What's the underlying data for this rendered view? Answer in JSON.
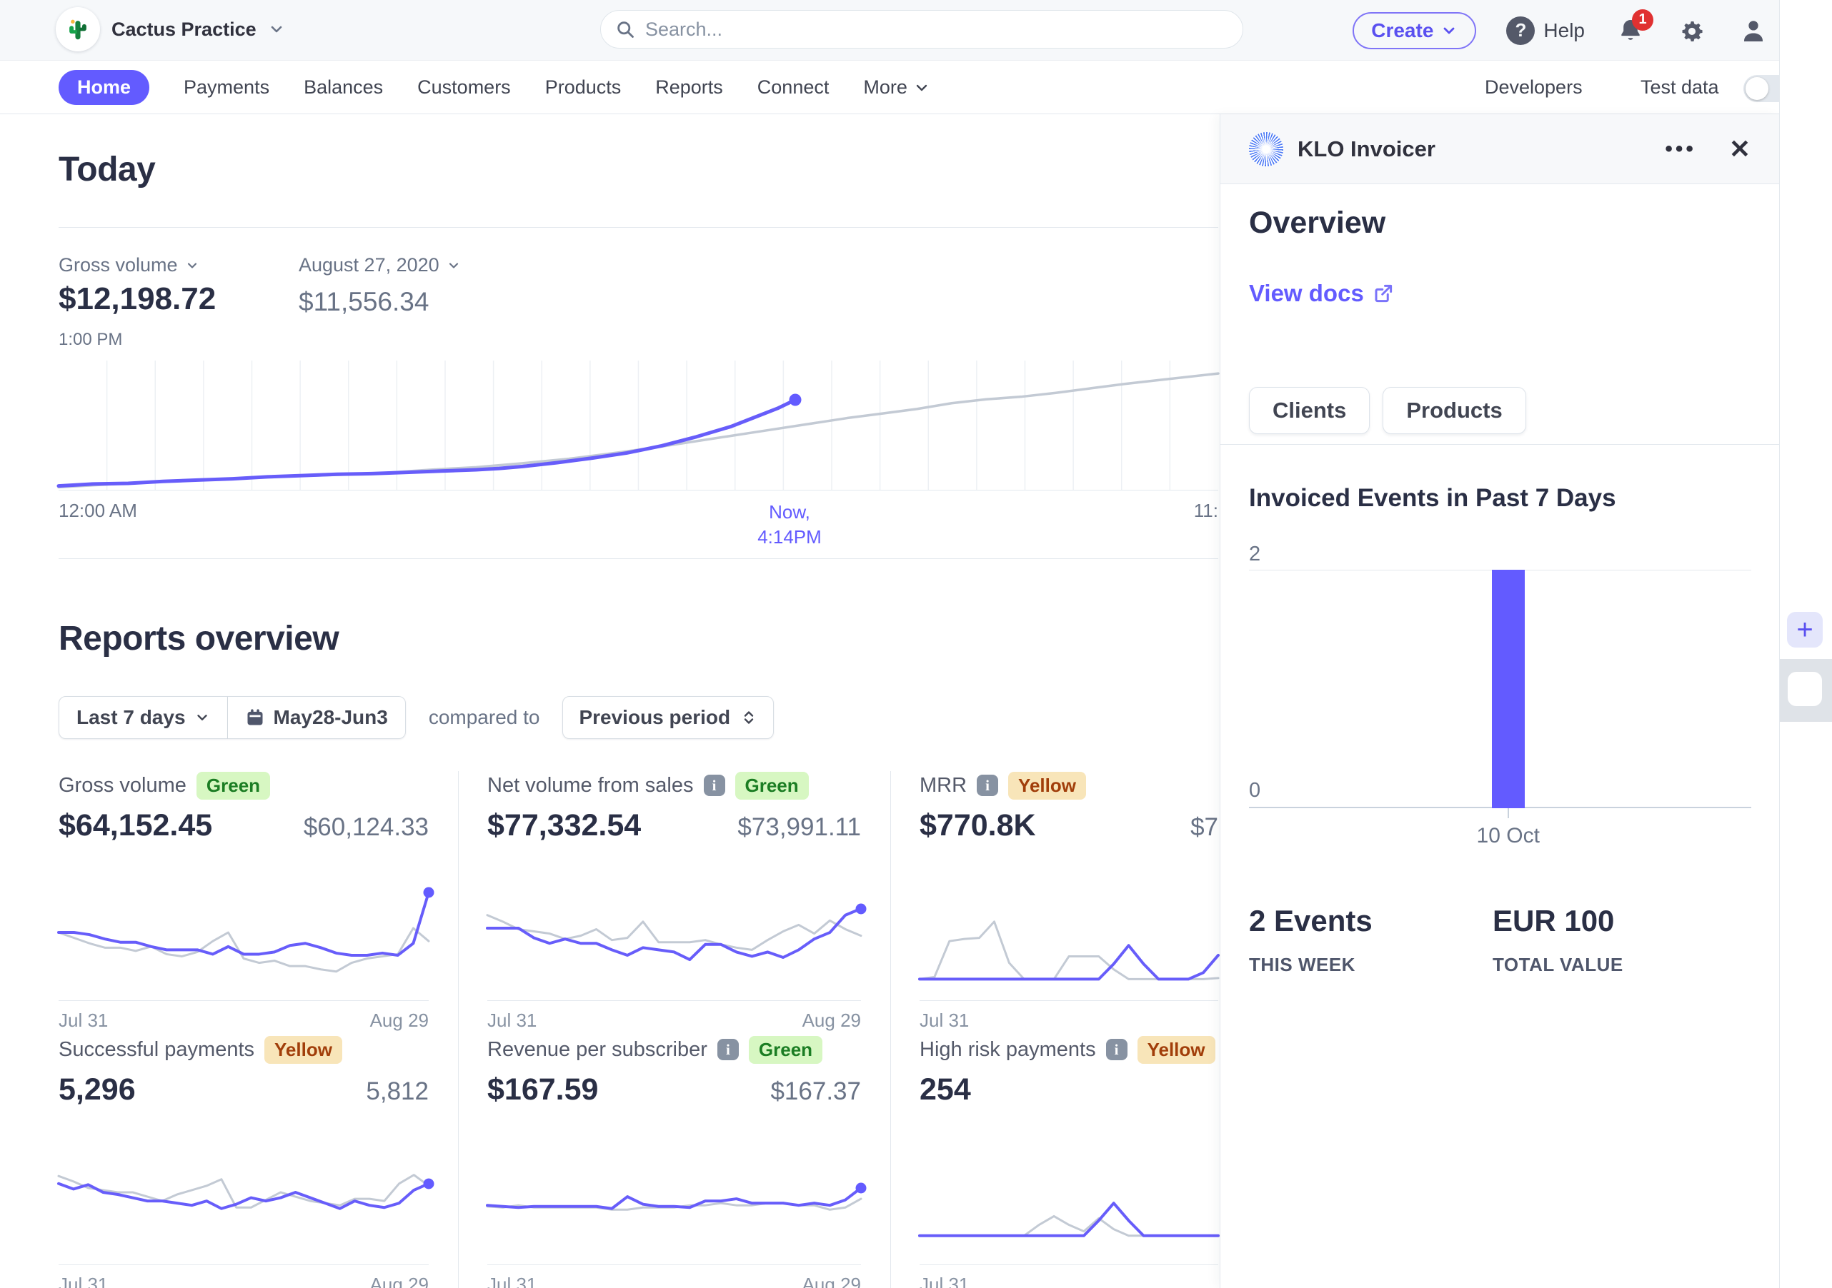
{
  "topbar": {
    "account": "Cactus Practice",
    "search_placeholder": "Search...",
    "create_label": "Create",
    "help_label": "Help",
    "help_glyph": "?",
    "notification_count": "1"
  },
  "nav": {
    "items": [
      "Home",
      "Payments",
      "Balances",
      "Customers",
      "Products",
      "Reports",
      "Connect",
      "More"
    ],
    "active": "Home",
    "developers": "Developers",
    "test_data": "Test data"
  },
  "icons": {
    "ellipsis": "•••",
    "close": "✕",
    "plus": "+"
  },
  "today": {
    "title": "Today",
    "metric_label": "Gross volume",
    "metric_value": "$12,198.72",
    "metric_time": "1:00 PM",
    "compare_date": "August 27, 2020",
    "compare_value": "$11,556.34",
    "x_left": "12:00 AM",
    "x_now_line1": "Now,",
    "x_now_line2": "4:14PM",
    "x_right": "11:",
    "chart": {
      "type": "line",
      "gridlines": 23,
      "dot": true,
      "purple": [
        [
          0,
          97
        ],
        [
          3,
          95.5
        ],
        [
          6,
          95
        ],
        [
          9,
          93.5
        ],
        [
          12,
          92.5
        ],
        [
          15,
          91.5
        ],
        [
          18,
          90
        ],
        [
          21,
          89
        ],
        [
          24,
          88
        ],
        [
          27,
          87.5
        ],
        [
          30,
          86.5
        ],
        [
          33,
          85.5
        ],
        [
          36,
          84.5
        ],
        [
          38,
          83.5
        ],
        [
          40,
          82
        ],
        [
          43,
          79
        ],
        [
          46,
          75.5
        ],
        [
          49,
          71.5
        ],
        [
          52,
          66
        ],
        [
          55,
          59
        ],
        [
          58,
          51
        ],
        [
          60,
          44
        ],
        [
          62,
          37
        ],
        [
          63.5,
          30.5
        ]
      ],
      "gray": [
        [
          0,
          98
        ],
        [
          4,
          96
        ],
        [
          8,
          94
        ],
        [
          12,
          92.5
        ],
        [
          16,
          91
        ],
        [
          20,
          89.5
        ],
        [
          24,
          88.5
        ],
        [
          28,
          87
        ],
        [
          32,
          84.5
        ],
        [
          36,
          82.5
        ],
        [
          40,
          79.5
        ],
        [
          44,
          76
        ],
        [
          48,
          71.5
        ],
        [
          52,
          66.5
        ],
        [
          56,
          61
        ],
        [
          60,
          55.5
        ],
        [
          64,
          50
        ],
        [
          68,
          44.5
        ],
        [
          71,
          41
        ],
        [
          74,
          37.5
        ],
        [
          77,
          33
        ],
        [
          80,
          30
        ],
        [
          83,
          28
        ],
        [
          86,
          25
        ],
        [
          89,
          21.5
        ],
        [
          92,
          18
        ],
        [
          95,
          15
        ],
        [
          100,
          10
        ]
      ]
    }
  },
  "reports": {
    "title": "Reports overview",
    "range_label": "Last 7 days",
    "date_range": "May28-Jun3",
    "compared_to": "compared to",
    "period_label": "Previous period",
    "cards": [
      {
        "title": "Gross volume",
        "info": false,
        "badge": "Green",
        "badge_type": "green",
        "value": "$64,152.45",
        "compare": "$60,124.33",
        "x0": "Jul 31",
        "x1": "Aug 29",
        "spark": {
          "dot": true,
          "purple": [
            52,
            52,
            54,
            58,
            61,
            61,
            65,
            68,
            68,
            68,
            72,
            65,
            72,
            72,
            70,
            64,
            62,
            66,
            71,
            73,
            73,
            71,
            73,
            62,
            15
          ],
          "gray": [
            52,
            57,
            62,
            66,
            66,
            69,
            65,
            72,
            74,
            70,
            60,
            52,
            76,
            80,
            78,
            83,
            83,
            86,
            88,
            80,
            76,
            74,
            72,
            48,
            60
          ]
        }
      },
      {
        "title": "Net volume from sales",
        "info": true,
        "badge": "Green",
        "badge_type": "green",
        "value": "$77,332.54",
        "compare": "$73,991.11",
        "x0": "Jul 31",
        "x1": "Aug 29",
        "spark": {
          "dot": true,
          "purple": [
            48,
            48,
            48,
            57,
            62,
            58,
            62,
            62,
            68,
            73,
            66,
            68,
            70,
            77,
            63,
            63,
            70,
            74,
            70,
            75,
            68,
            58,
            52,
            36,
            30
          ],
          "gray": [
            36,
            42,
            49,
            51,
            53,
            58,
            55,
            49,
            59,
            57,
            42,
            61,
            61,
            61,
            59,
            63,
            66,
            68,
            59,
            51,
            45,
            53,
            41,
            49,
            55
          ]
        }
      },
      {
        "title": "MRR",
        "info": true,
        "badge": "Yellow",
        "badge_type": "yellow",
        "value": "$770.8K",
        "compare": "$7",
        "x0": "Jul 31",
        "x1": "",
        "spark": {
          "dot": false,
          "purple": [
            95,
            95,
            95,
            95,
            95,
            95,
            95,
            95,
            95,
            95,
            95,
            95,
            95,
            81,
            64,
            81,
            95,
            95,
            95,
            89,
            73
          ],
          "gray": [
            95,
            93,
            60,
            58,
            57,
            42,
            80,
            95,
            95,
            95,
            74,
            74,
            74,
            86,
            95,
            95,
            95,
            95,
            95,
            95,
            94
          ]
        }
      },
      {
        "title": "Successful payments",
        "info": false,
        "badge": "Yellow",
        "badge_type": "yellow",
        "value": "5,296",
        "compare": "5,812",
        "x0": "Jul 31",
        "x1": "Aug 29",
        "spark": {
          "dot": true,
          "purple": [
            40,
            45,
            41,
            48,
            50,
            53,
            56,
            56,
            58,
            60,
            56,
            63,
            59,
            53,
            56,
            53,
            48,
            53,
            58,
            63,
            56,
            60,
            62,
            58,
            46,
            40
          ],
          "gray": [
            33,
            38,
            44,
            46,
            48,
            48,
            52,
            56,
            50,
            46,
            42,
            36,
            62,
            62,
            55,
            48,
            52,
            56,
            58,
            60,
            54,
            54,
            56,
            40,
            32,
            42
          ]
        }
      },
      {
        "title": "Revenue per subscriber",
        "info": true,
        "badge": "Green",
        "badge_type": "green",
        "value": "$167.59",
        "compare": "$167.37",
        "x0": "Jul 31",
        "x1": "Aug 29",
        "spark": {
          "dot": true,
          "purple": [
            60,
            61,
            62,
            61,
            61,
            61,
            61,
            61,
            63,
            52,
            59,
            61,
            61,
            62,
            56,
            56,
            54,
            58,
            58,
            58,
            60,
            58,
            60,
            55,
            44
          ],
          "gray": [
            61,
            62,
            60,
            62,
            62,
            62,
            62,
            62,
            64,
            64,
            62,
            62,
            62,
            60,
            60,
            58,
            60,
            60,
            58,
            58,
            60,
            60,
            64,
            62,
            54
          ]
        }
      },
      {
        "title": "High risk payments",
        "info": true,
        "badge": "Yellow",
        "badge_type": "yellow",
        "value": "254",
        "compare": "",
        "x0": "Jul 31",
        "x1": "",
        "spark": {
          "dot": false,
          "purple": [
            88,
            88,
            88,
            88,
            88,
            88,
            88,
            88,
            88,
            88,
            88,
            88,
            74,
            58,
            74,
            88,
            88,
            88,
            88,
            88,
            88
          ],
          "gray": [
            88,
            88,
            88,
            88,
            88,
            88,
            88,
            88,
            78,
            70,
            78,
            84,
            72,
            82,
            88,
            88,
            88,
            88,
            88,
            88,
            88
          ]
        }
      }
    ]
  },
  "panel": {
    "app_name": "KLO Invoicer",
    "overview_title": "Overview",
    "view_docs": "View docs",
    "tab_buttons": [
      "Clients",
      "Products"
    ],
    "chart_title": "Invoiced Events in Past 7 Days",
    "chart": {
      "type": "bar",
      "y_max_label": "2",
      "y_min_label": "0",
      "ymax": 2,
      "bars": [
        {
          "label": "10 Oct",
          "value": 2,
          "x_pct": 51.6
        }
      ]
    },
    "stats": [
      {
        "value": "2 Events",
        "label": "THIS WEEK"
      },
      {
        "value": "EUR 100",
        "label": "TOTAL VALUE"
      }
    ]
  },
  "accent_colors": {
    "purple": "#635bff",
    "gray_line": "#c3cad4",
    "badge_green_bg": "#d7f7c2",
    "badge_yellow_bg": "#f8e5b9",
    "notification_red": "#e03131"
  }
}
